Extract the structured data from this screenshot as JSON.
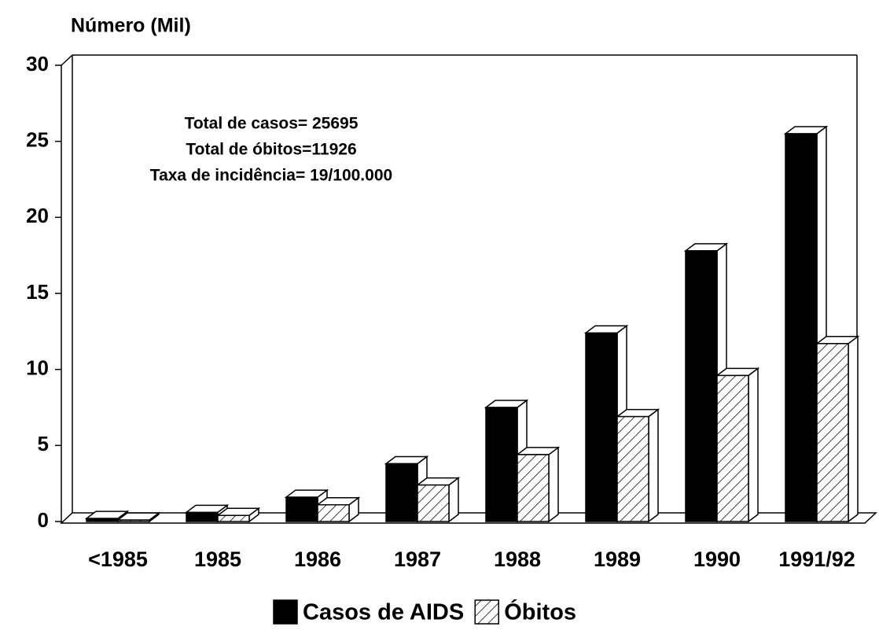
{
  "chart_data": {
    "type": "bar3d",
    "title": "Número (Mil)",
    "annotations": [
      "Total de casos= 25695",
      "Total de óbitos=11926",
      "Taxa de incidência= 19/100.000"
    ],
    "categories": [
      "<1985",
      "1985",
      "1986",
      "1987",
      "1988",
      "1989",
      "1990",
      "1991/92"
    ],
    "series": [
      {
        "name": "Casos de AIDS",
        "color": "#000000",
        "pattern": "solid",
        "values": [
          0.2,
          0.6,
          1.6,
          3.8,
          7.5,
          12.4,
          17.8,
          25.5
        ]
      },
      {
        "name": "Óbitos",
        "color": "#ffffff",
        "pattern": "hatch",
        "values": [
          0.1,
          0.4,
          1.1,
          2.4,
          4.4,
          6.9,
          9.6,
          11.7
        ]
      }
    ],
    "ylim": [
      0,
      30
    ],
    "yticks": [
      0,
      5,
      10,
      15,
      20,
      25,
      30
    ]
  }
}
